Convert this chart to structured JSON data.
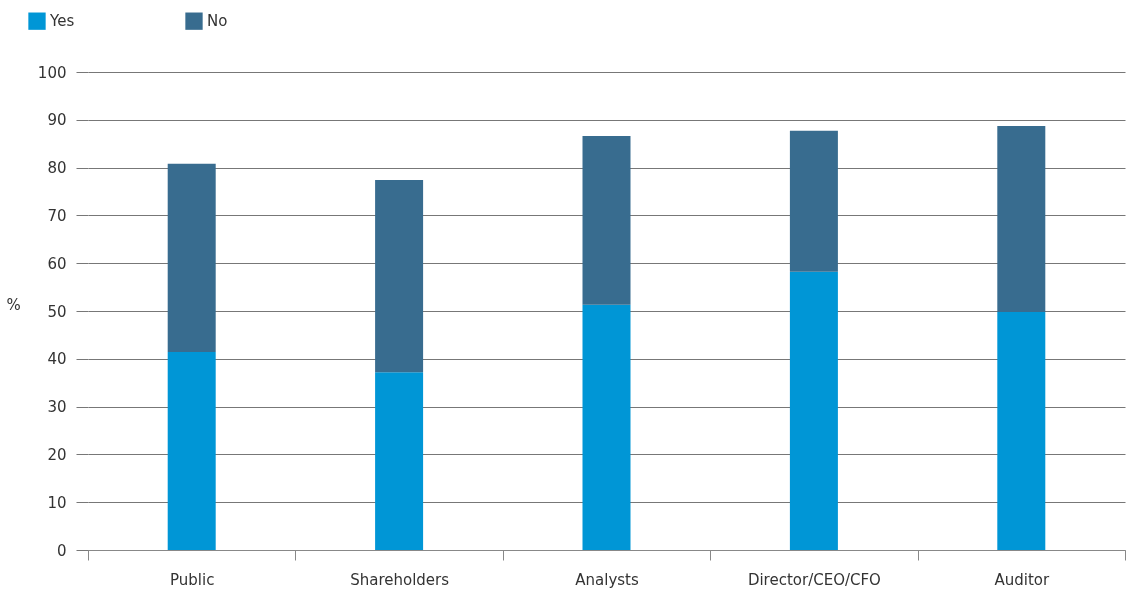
{
  "chart_data": {
    "type": "bar",
    "stacked": true,
    "ylabel": "%",
    "categories": [
      "Public",
      "Shareholders",
      "Analysts",
      "Director/CEO/CFO",
      "Auditor"
    ],
    "series": [
      {
        "name": "Yes",
        "color": "#0096d6",
        "values": [
          41.4,
          37.2,
          51.3,
          58.2,
          49.8
        ]
      },
      {
        "name": "No",
        "color": "#386c8f",
        "values": [
          39.4,
          40.2,
          35.3,
          29.5,
          38.9
        ]
      }
    ],
    "ylim": [
      0,
      100
    ],
    "yticks": [
      0,
      10,
      20,
      30,
      40,
      50,
      60,
      70,
      80,
      90,
      100
    ],
    "grid": "y",
    "legend": "top left"
  }
}
